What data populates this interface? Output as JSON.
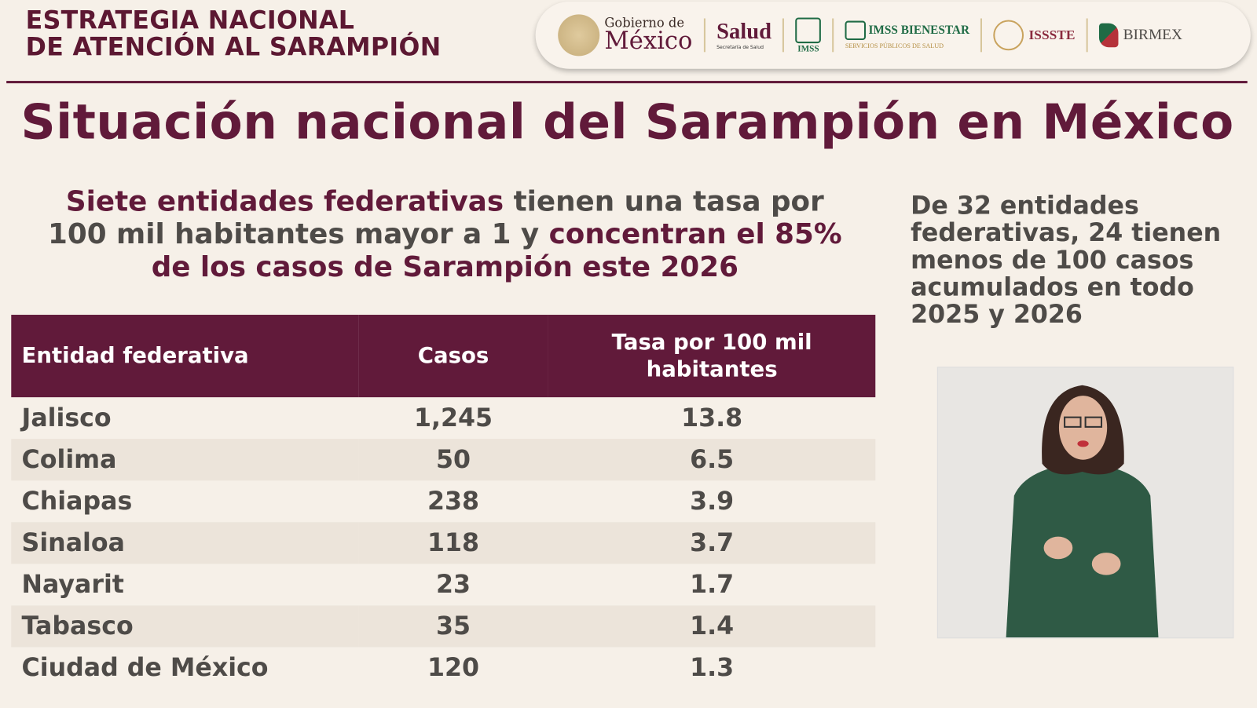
{
  "header": {
    "title_line1": "ESTRATEGIA NACIONAL",
    "title_line2": "DE ATENCIÓN AL SARAMPIÓN",
    "logos": {
      "gobierno_line1": "Gobierno de",
      "gobierno_line2": "México",
      "salud": "Salud",
      "salud_sub": "Secretaría de Salud",
      "imss": "IMSS",
      "imss_bienestar": "IMSS BIENESTAR",
      "imss_bienestar_sub": "SERVICIOS PÚBLICOS DE SALUD",
      "issste": "ISSSTE",
      "birmex": "BIRMEX"
    }
  },
  "main_title": "Situación nacional del Sarampión en México",
  "subtitle": {
    "part1": "Siete entidades federativas",
    "part2": " tienen una tasa por 100 mil habitantes mayor a 1 y ",
    "part3": "concentran el 85% de los casos de Sarampión este 2026"
  },
  "side_note": "De 32 entidades federativas, 24 tienen menos de 100 casos acumulados en todo 2025 y 2026",
  "table": {
    "headers": [
      "Entidad federativa",
      "Casos",
      "Tasa por 100 mil habitantes"
    ],
    "rows": [
      [
        "Jalisco",
        "1,245",
        "13.8"
      ],
      [
        "Colima",
        "50",
        "6.5"
      ],
      [
        "Chiapas",
        "238",
        "3.9"
      ],
      [
        "Sinaloa",
        "118",
        "3.7"
      ],
      [
        "Nayarit",
        "23",
        "1.7"
      ],
      [
        "Tabasco",
        "35",
        "1.4"
      ],
      [
        "Ciudad de México",
        "120",
        "1.3"
      ]
    ]
  },
  "colors": {
    "brand_maroon": "#611a3a",
    "text_gray": "#4e4b48",
    "background": "#f6f0e8",
    "row_stripe": "#ece4da"
  }
}
